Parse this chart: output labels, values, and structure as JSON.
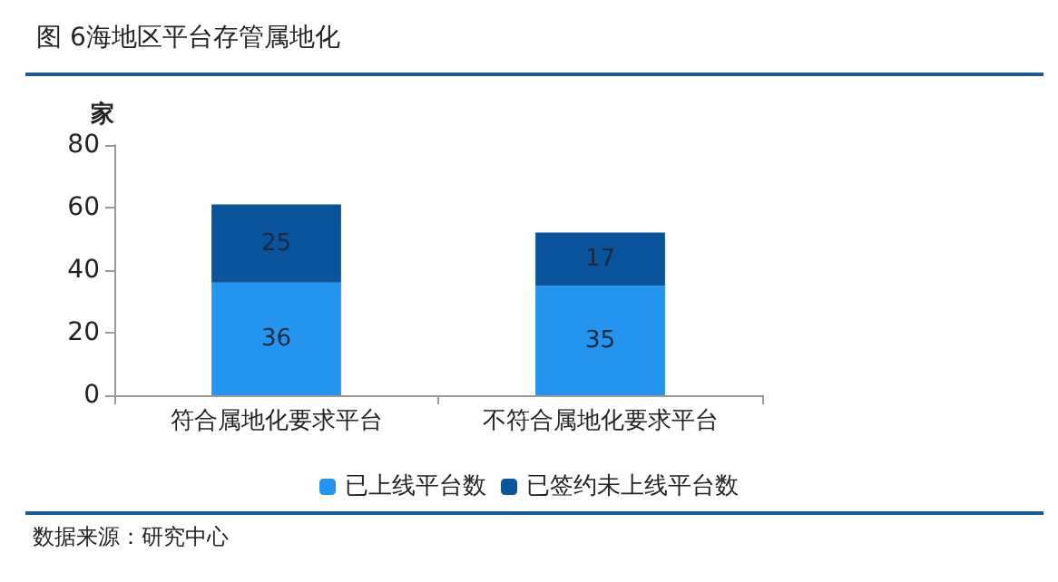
{
  "chart_data": {
    "type": "bar",
    "title": "图  6海地区平台存管属地化",
    "ylabel": "家",
    "categories": [
      "符合属地化要求平台",
      "不符合属地化要求平台"
    ],
    "series": [
      {
        "name": "已上线平台数",
        "color": "#2494ef",
        "values": [
          36,
          35
        ]
      },
      {
        "name": "已签约未上线平台数",
        "color": "#0a549c",
        "values": [
          25,
          17
        ]
      }
    ],
    "stacked": true,
    "data_labels": true,
    "ylim": [
      0,
      80
    ],
    "yticks": [
      0,
      20,
      40,
      60,
      80
    ],
    "grid": false,
    "legend": "bottom",
    "annotations": [
      "数据来源：研究中心"
    ]
  }
}
